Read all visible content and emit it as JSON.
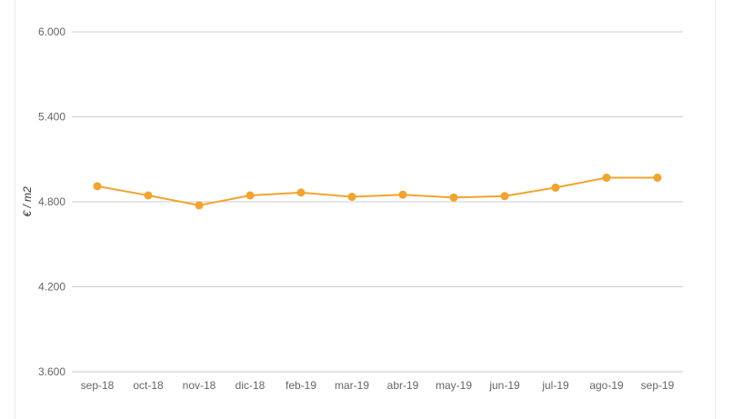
{
  "chart_data": {
    "type": "line",
    "categories": [
      "sep-18",
      "oct-18",
      "nov-18",
      "dic-18",
      "feb-19",
      "mar-19",
      "abr-19",
      "may-19",
      "jun-19",
      "jul-19",
      "ago-19",
      "sep-19"
    ],
    "series": [
      {
        "values": [
          4.91,
          4.845,
          4.775,
          4.845,
          4.865,
          4.835,
          4.85,
          4.83,
          4.84,
          4.9,
          4.97,
          4.97
        ]
      }
    ],
    "ylabel": "€ / m2",
    "xlabel": "",
    "yticks": [
      "3.600",
      "4.200",
      "4.800",
      "5.400",
      "6.000"
    ],
    "ylim": [
      3.6,
      6.0
    ],
    "grid": true,
    "line_color": "#f2a42e",
    "grid_color": "#cccccc"
  }
}
